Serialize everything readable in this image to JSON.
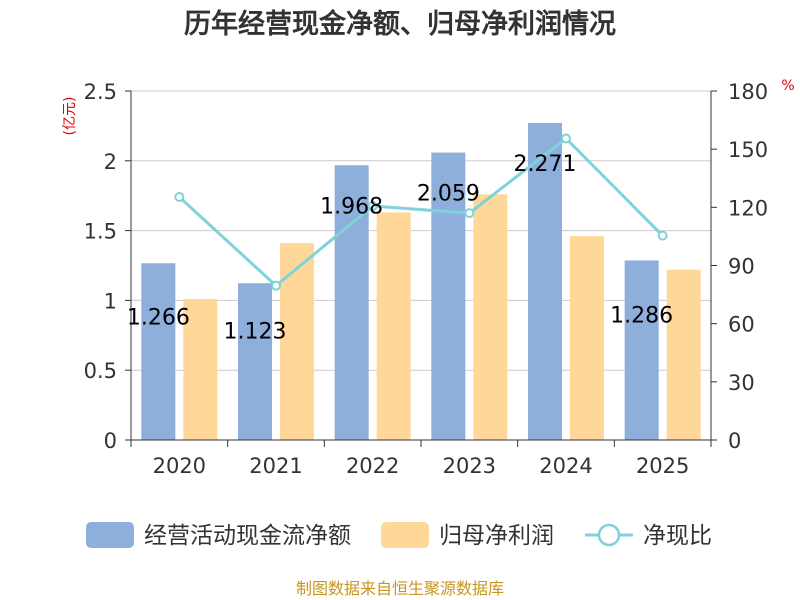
{
  "chart_data": {
    "type": "bar",
    "title": "历年经营现金净额、归母净利润情况",
    "categories": [
      "2020",
      "2021",
      "2022",
      "2023",
      "2024",
      "2025"
    ],
    "series": [
      {
        "name": "经营活动现金流净额",
        "kind": "bar",
        "axis": "left",
        "color": "#8eaedb",
        "values": [
          1.266,
          1.123,
          1.968,
          2.059,
          2.271,
          1.286
        ],
        "labels": [
          "1.266",
          "1.123",
          "1.968",
          "2.059",
          "2.271",
          "1.286"
        ]
      },
      {
        "name": "归母净利润",
        "kind": "bar",
        "axis": "left",
        "color": "#ffd899",
        "values": [
          1.01,
          1.41,
          1.63,
          1.76,
          1.46,
          1.22
        ]
      },
      {
        "name": "净现比",
        "kind": "line",
        "axis": "right",
        "color": "#7fd3d8",
        "values": [
          125.3,
          79.6,
          120.7,
          117.0,
          155.5,
          105.4
        ]
      }
    ],
    "y_left": {
      "unit": "(亿元)",
      "min": 0,
      "max": 2.5,
      "ticks": [
        "0",
        "0.5",
        "1",
        "1.5",
        "2",
        "2.5"
      ]
    },
    "y_right": {
      "unit": "%",
      "min": 0,
      "max": 180,
      "ticks": [
        "0",
        "30",
        "60",
        "90",
        "120",
        "150",
        "180"
      ]
    },
    "legend_position": "bottom"
  },
  "footer": {
    "source": "制图数据来自恒生聚源数据库"
  }
}
